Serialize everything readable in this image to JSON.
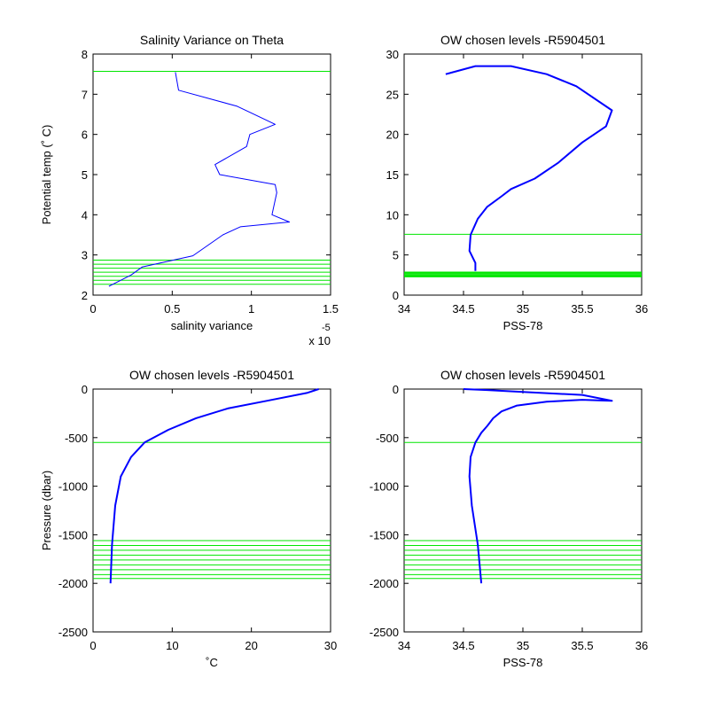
{
  "colors": {
    "profile": "#0000ff",
    "level": "#00e600",
    "axis": "#000000",
    "background": "#ffffff"
  },
  "chart_data": [
    {
      "type": "line",
      "title": "Salinity Variance on Theta",
      "xlabel": "salinity variance",
      "ylabel": "Potential temp (˚ C)",
      "exponent_base": "x 10",
      "exponent_power": "-5",
      "xlim": [
        0,
        1.5
      ],
      "ylim": [
        2,
        8
      ],
      "xticks": [
        0,
        0.5,
        1,
        1.5
      ],
      "xtick_labels": [
        "0",
        "0.5",
        "1",
        "1.5"
      ],
      "yticks": [
        2,
        3,
        4,
        5,
        6,
        7,
        8
      ],
      "ytick_labels": [
        "2",
        "3",
        "4",
        "5",
        "6",
        "7",
        "8"
      ],
      "grid": false,
      "series": [
        {
          "x": [
            0.52,
            0.54,
            0.91,
            1.15,
            0.99,
            0.97,
            0.77,
            0.8,
            1.15,
            1.16,
            1.13,
            1.24,
            0.93,
            0.82,
            0.63,
            0.31,
            0.24,
            0.1
          ],
          "y": [
            7.55,
            7.1,
            6.7,
            6.25,
            6.0,
            5.7,
            5.25,
            5.0,
            4.75,
            4.55,
            4.0,
            3.82,
            3.7,
            3.5,
            2.98,
            2.7,
            2.5,
            2.22
          ]
        }
      ],
      "hlines": [
        7.57,
        2.87,
        2.77,
        2.67,
        2.57,
        2.47,
        2.37,
        2.27
      ]
    },
    {
      "type": "line",
      "title": "OW chosen levels -R5904501",
      "xlabel": "PSS-78",
      "ylabel": "",
      "xlim": [
        34,
        36
      ],
      "ylim": [
        0,
        30
      ],
      "xticks": [
        34,
        34.5,
        35,
        35.5,
        36
      ],
      "xtick_labels": [
        "34",
        "34.5",
        "35",
        "35.5",
        "36"
      ],
      "yticks": [
        0,
        5,
        10,
        15,
        20,
        25,
        30
      ],
      "ytick_labels": [
        "0",
        "5",
        "10",
        "15",
        "20",
        "25",
        "30"
      ],
      "grid": false,
      "series": [
        {
          "x": [
            34.6,
            34.6,
            34.55,
            34.56,
            34.62,
            34.7,
            34.82,
            34.9,
            35.1,
            35.3,
            35.5,
            35.7,
            35.75,
            35.45,
            35.2,
            34.9,
            34.6,
            34.35
          ],
          "y": [
            3,
            4,
            5.5,
            7.5,
            9.5,
            11,
            12.3,
            13.2,
            14.5,
            16.5,
            19,
            21,
            23,
            26,
            27.5,
            28.5,
            28.5,
            27.5
          ]
        }
      ],
      "hlines": [
        7.57,
        2.87,
        2.77,
        2.67,
        2.57,
        2.47,
        2.37,
        2.27
      ]
    },
    {
      "type": "line",
      "title": "OW chosen levels -R5904501",
      "xlabel": "˚C",
      "ylabel": "Pressure (dbar)",
      "xlim": [
        0,
        30
      ],
      "ylim": [
        -2500,
        0
      ],
      "xticks": [
        0,
        10,
        20,
        30
      ],
      "xtick_labels": [
        "0",
        "10",
        "20",
        "30"
      ],
      "yticks": [
        -2500,
        -2000,
        -1500,
        -1000,
        -500,
        0
      ],
      "ytick_labels": [
        "-2500",
        "-2000",
        "-1500",
        "-1000",
        "-500",
        "0"
      ],
      "grid": false,
      "series": [
        {
          "x": [
            2.2,
            2.4,
            2.8,
            3.5,
            4.8,
            6.5,
            9.5,
            13,
            17,
            22,
            27,
            28.5
          ],
          "y": [
            -2000,
            -1600,
            -1200,
            -900,
            -700,
            -550,
            -420,
            -300,
            -200,
            -120,
            -40,
            0
          ]
        }
      ],
      "hlines": [
        -550,
        -1560,
        -1610,
        -1660,
        -1710,
        -1760,
        -1810,
        -1860,
        -1910,
        -1950
      ]
    },
    {
      "type": "line",
      "title": "OW chosen levels -R5904501",
      "xlabel": "PSS-78",
      "ylabel": "",
      "xlim": [
        34,
        36
      ],
      "ylim": [
        -2500,
        0
      ],
      "xticks": [
        34,
        34.5,
        35,
        35.5,
        36
      ],
      "xtick_labels": [
        "34",
        "34.5",
        "35",
        "35.5",
        "36"
      ],
      "yticks": [
        -2500,
        -2000,
        -1500,
        -1000,
        -500,
        0
      ],
      "ytick_labels": [
        "-2500",
        "-2000",
        "-1500",
        "-1000",
        "-500",
        "0"
      ],
      "grid": false,
      "series": [
        {
          "x": [
            34.65,
            34.62,
            34.57,
            34.55,
            34.56,
            34.6,
            34.65,
            34.7,
            34.75,
            34.82,
            34.95,
            35.2,
            35.5,
            35.75,
            35.5,
            35.0,
            34.7,
            34.5
          ],
          "y": [
            -2000,
            -1600,
            -1200,
            -900,
            -700,
            -550,
            -450,
            -380,
            -300,
            -230,
            -170,
            -130,
            -110,
            -120,
            -60,
            -30,
            -10,
            0
          ]
        }
      ],
      "hlines": [
        -550,
        -1560,
        -1610,
        -1660,
        -1710,
        -1760,
        -1810,
        -1860,
        -1910,
        -1950
      ]
    }
  ]
}
